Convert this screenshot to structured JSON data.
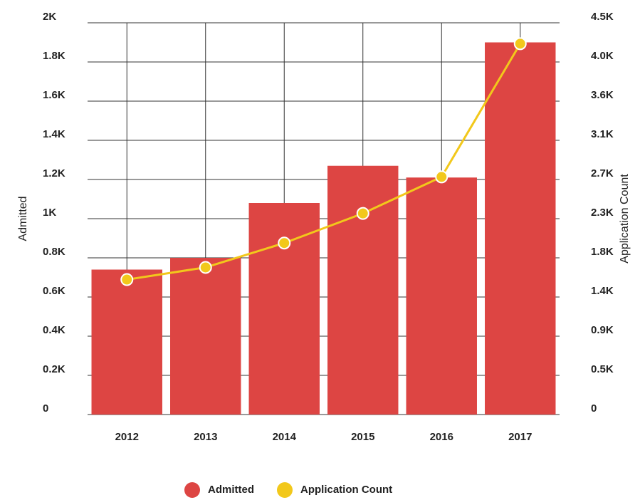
{
  "chart_data": {
    "type": "bar-line",
    "categories": [
      "2012",
      "2013",
      "2014",
      "2015",
      "2016",
      "2017"
    ],
    "ylabel": "Admitted",
    "y2label": "Application Count",
    "series": [
      {
        "name": "Admitted",
        "type": "bar",
        "color": "#dd4543",
        "values": [
          740,
          800,
          1080,
          1270,
          1210,
          1900
        ]
      },
      {
        "name": "Application Count",
        "type": "line",
        "axis": "y2",
        "color": "#f2c81b",
        "values": [
          1550,
          1690,
          1970,
          2310,
          2730,
          4260
        ]
      }
    ],
    "ylim": [
      0,
      2000
    ],
    "yticks": [
      0,
      {
        "value": 200,
        "label": "0.2K"
      },
      {
        "value": 400,
        "label": "0.4K"
      },
      {
        "value": 600,
        "label": "0.6K"
      },
      {
        "value": 800,
        "label": "0.8K"
      },
      {
        "value": 1000,
        "label": "1K"
      },
      {
        "value": 1200,
        "label": "1.2K"
      },
      {
        "value": 1400,
        "label": "1.4K"
      },
      {
        "value": 1600,
        "label": "1.6K"
      },
      {
        "value": 1800,
        "label": "1.8K"
      },
      {
        "value": 2000,
        "label": "2K"
      }
    ],
    "y2lim": [
      0,
      4500
    ],
    "y2ticks": [
      0,
      {
        "value": 450,
        "label": "0.5K"
      },
      {
        "value": 900,
        "label": "0.9K"
      },
      {
        "value": 1350,
        "label": "1.4K"
      },
      {
        "value": 1800,
        "label": "1.8K"
      },
      {
        "value": 2250,
        "label": "2.3K"
      },
      {
        "value": 2700,
        "label": "2.7K"
      },
      {
        "value": 3150,
        "label": "3.1K"
      },
      {
        "value": 3600,
        "label": "3.6K"
      },
      {
        "value": 4050,
        "label": "4.0K"
      },
      {
        "value": 4500,
        "label": "4.5K"
      }
    ],
    "grid": true,
    "legend": "bottom"
  }
}
